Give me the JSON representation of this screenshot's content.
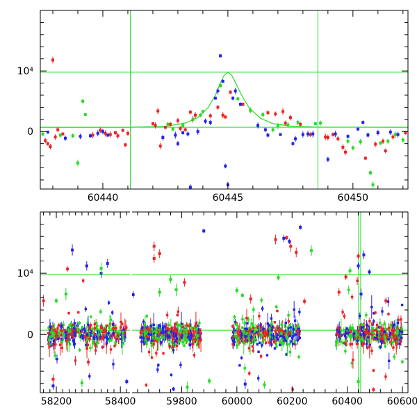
{
  "chart_data": [
    {
      "panel": "top",
      "type": "scatter",
      "title": "",
      "xlabel": "",
      "ylabel": "",
      "xlim": [
        60437.5,
        60452.2
      ],
      "ylim": [
        -9500,
        20000
      ],
      "xticks": [
        60440,
        60445,
        60450
      ],
      "xtick_labels": [
        "60440",
        "60445",
        "60450"
      ],
      "yticks": [
        0,
        10000
      ],
      "ytick_labels": [
        "0",
        "10⁴"
      ],
      "hlines": [
        {
          "y": 700,
          "color": "#22dd22"
        },
        {
          "y": 9800,
          "color": "#22dd22"
        }
      ],
      "vlines": [
        {
          "x": 60441.1,
          "color": "#22dd22"
        },
        {
          "x": 60448.6,
          "color": "#22dd22"
        }
      ],
      "model_curve": {
        "color": "#22dd22",
        "points": [
          [
            60437.5,
            700
          ],
          [
            60441.0,
            710
          ],
          [
            60442.5,
            850
          ],
          [
            60443.3,
            1400
          ],
          [
            60443.8,
            2300
          ],
          [
            60444.2,
            3900
          ],
          [
            60444.5,
            6000
          ],
          [
            60444.7,
            8000
          ],
          [
            60444.85,
            9300
          ],
          [
            60445.0,
            9800
          ],
          [
            60445.15,
            9300
          ],
          [
            60445.3,
            8100
          ],
          [
            60445.55,
            6000
          ],
          [
            60445.85,
            3900
          ],
          [
            60446.3,
            2200
          ],
          [
            60446.8,
            1300
          ],
          [
            60447.5,
            900
          ],
          [
            60448.5,
            740
          ],
          [
            60452.2,
            700
          ]
        ]
      },
      "series": [
        {
          "color": "#ee2222",
          "points": [
            [
              60437.7,
              -1500
            ],
            [
              60437.8,
              -2000
            ],
            [
              60437.9,
              -2500
            ],
            [
              60438.0,
              11800
            ],
            [
              60438.1,
              -900
            ],
            [
              60438.2,
              300
            ],
            [
              60438.4,
              -400
            ],
            [
              60439.6,
              -600
            ],
            [
              60439.9,
              200
            ],
            [
              60440.1,
              -300
            ],
            [
              60440.3,
              -500
            ],
            [
              60440.5,
              -200
            ],
            [
              60440.6,
              -700
            ],
            [
              60440.8,
              200
            ],
            [
              60441.0,
              -300
            ],
            [
              60440.9,
              -2200
            ],
            [
              60442.0,
              1300
            ],
            [
              60442.1,
              1000
            ],
            [
              60442.2,
              3400
            ],
            [
              60442.3,
              -2400
            ],
            [
              60442.5,
              700
            ],
            [
              60442.7,
              1200
            ],
            [
              60443.0,
              1800
            ],
            [
              60443.1,
              500
            ],
            [
              60443.3,
              300
            ],
            [
              60443.5,
              3200
            ],
            [
              60443.6,
              2000
            ],
            [
              60443.7,
              2700
            ],
            [
              60444.3,
              2600
            ],
            [
              60444.6,
              4000
            ],
            [
              60444.8,
              2700
            ],
            [
              60444.9,
              2400
            ],
            [
              60445.1,
              6500
            ],
            [
              60445.6,
              4500
            ],
            [
              60446.6,
              3100
            ],
            [
              60446.9,
              2900
            ],
            [
              60447.2,
              3300
            ],
            [
              60447.3,
              1400
            ],
            [
              60447.5,
              2300
            ],
            [
              60447.9,
              1200
            ],
            [
              60448.3,
              -500
            ],
            [
              60448.9,
              -900
            ],
            [
              60449.0,
              -1000
            ],
            [
              60449.2,
              -500
            ],
            [
              60449.4,
              -1200
            ],
            [
              60449.6,
              -2600
            ],
            [
              60449.7,
              -3400
            ],
            [
              60450.5,
              -4400
            ],
            [
              60450.9,
              -2100
            ],
            [
              60451.0,
              -200
            ],
            [
              60451.2,
              -1600
            ],
            [
              60451.3,
              -3200
            ],
            [
              60451.6,
              -900
            ],
            [
              60452.1,
              -200
            ]
          ]
        },
        {
          "color": "#22dd22",
          "points": [
            [
              60437.6,
              -400
            ],
            [
              60438.3,
              -600
            ],
            [
              60438.8,
              -700
            ],
            [
              60439.0,
              -5200
            ],
            [
              60439.2,
              5000
            ],
            [
              60439.3,
              2800
            ],
            [
              60442.6,
              1200
            ],
            [
              60442.8,
              400
            ],
            [
              60443.2,
              1000
            ],
            [
              60443.6,
              2000
            ],
            [
              60443.9,
              2700
            ],
            [
              60444.0,
              3300
            ],
            [
              60444.7,
              7600
            ],
            [
              60445.4,
              5400
            ],
            [
              60445.9,
              3500
            ],
            [
              60446.4,
              2800
            ],
            [
              60446.8,
              300
            ],
            [
              60447.0,
              900
            ],
            [
              60447.4,
              1100
            ],
            [
              60447.8,
              1500
            ],
            [
              60448.5,
              1300
            ],
            [
              60448.7,
              1400
            ],
            [
              60449.8,
              -1600
            ],
            [
              60450.0,
              -2700
            ],
            [
              60450.3,
              -1700
            ],
            [
              60450.6,
              -500
            ],
            [
              60450.7,
              -6800
            ],
            [
              60450.8,
              -8800
            ],
            [
              60451.1,
              -1900
            ],
            [
              60451.4,
              -1600
            ],
            [
              60451.7,
              -500
            ],
            [
              60452.0,
              -1400
            ]
          ]
        },
        {
          "color": "#2222ee",
          "points": [
            [
              60437.8,
              -100
            ],
            [
              60438.5,
              -1100
            ],
            [
              60439.1,
              -800
            ],
            [
              60439.5,
              -700
            ],
            [
              60439.8,
              -300
            ],
            [
              60440.0,
              0
            ],
            [
              60440.2,
              -600
            ],
            [
              60442.4,
              -1000
            ],
            [
              60442.9,
              -600
            ],
            [
              60443.0,
              -2000
            ],
            [
              60443.2,
              -200
            ],
            [
              60443.4,
              -400
            ],
            [
              60443.5,
              -9200
            ],
            [
              60443.8,
              0
            ],
            [
              60444.1,
              1700
            ],
            [
              60444.3,
              1500
            ],
            [
              60444.5,
              5500
            ],
            [
              60444.6,
              6700
            ],
            [
              60444.7,
              12500
            ],
            [
              60444.8,
              8300
            ],
            [
              60444.9,
              -5700
            ],
            [
              60445.0,
              -8800
            ],
            [
              60445.2,
              5500
            ],
            [
              60445.3,
              6700
            ],
            [
              60445.5,
              4500
            ],
            [
              60446.2,
              1000
            ],
            [
              60446.5,
              300
            ],
            [
              60446.6,
              -600
            ],
            [
              60447.1,
              -500
            ],
            [
              60447.6,
              -2000
            ],
            [
              60447.7,
              -1200
            ],
            [
              60448.0,
              -500
            ],
            [
              60448.2,
              -400
            ],
            [
              60448.4,
              -400
            ],
            [
              60449.0,
              -4600
            ],
            [
              60449.3,
              -400
            ],
            [
              60449.8,
              -800
            ],
            [
              60450.2,
              400
            ],
            [
              60450.4,
              1500
            ],
            [
              60450.6,
              -600
            ],
            [
              60451.0,
              -200
            ],
            [
              60451.5,
              -100
            ],
            [
              60451.8,
              -500
            ]
          ]
        }
      ]
    },
    {
      "panel": "bottom",
      "type": "scatter",
      "title": "",
      "xlabel": "",
      "ylabel": "",
      "xticks": [
        58200,
        58400,
        59800,
        60000,
        60200,
        60400,
        60600
      ],
      "xtick_labels": [
        "58200",
        "58400",
        "59800",
        "60000",
        "60200",
        "60400",
        "60600"
      ],
      "axis_break": {
        "left_segment": [
          58150,
          58430
        ],
        "right_segment": [
          59620,
          60620
        ]
      },
      "ylim": [
        -9500,
        20000
      ],
      "yticks": [
        0,
        10000
      ],
      "ytick_labels": [
        "0",
        "10⁴"
      ],
      "hlines": [
        {
          "y": 700,
          "color": "#22dd22"
        },
        {
          "y": 9800,
          "color": "#22dd22"
        }
      ],
      "vlines": [
        {
          "x": 60441.1,
          "color": "#22dd22"
        },
        {
          "x": 60448.6,
          "color": "#22dd22"
        }
      ],
      "seasons": [
        {
          "x0": 58175,
          "x1": 58420
        },
        {
          "x0": 59650,
          "x1": 59870
        },
        {
          "x0": 59980,
          "x1": 60230
        },
        {
          "x0": 60360,
          "x1": 60600
        }
      ],
      "series_colors": [
        "#ee2222",
        "#22dd22",
        "#2222ee"
      ],
      "outliers": [
        {
          "color": "#2222ee",
          "points": [
            [
              58250,
              13800
            ],
            [
              58295,
              11200
            ],
            [
              58340,
              10000
            ],
            [
              58360,
              11600
            ],
            [
              58440,
              6500
            ],
            [
              59880,
              16900
            ],
            [
              60170,
              15700
            ],
            [
              60190,
              15200
            ],
            [
              60230,
              17500
            ],
            [
              60440,
              11200
            ],
            [
              60460,
              13000
            ],
            [
              60450,
              6600
            ],
            [
              60480,
              10200
            ],
            [
              58190,
              -8400
            ],
            [
              58420,
              -7700
            ],
            [
              59770,
              -8900
            ],
            [
              60030,
              -8100
            ]
          ]
        },
        {
          "color": "#ee2222",
          "points": [
            [
              58235,
              10700
            ],
            [
              58160,
              5500
            ],
            [
              58190,
              -7300
            ],
            [
              59700,
              14400
            ],
            [
              59720,
              13200
            ],
            [
              59700,
              12400
            ],
            [
              59810,
              8500
            ],
            [
              60050,
              5800
            ],
            [
              60140,
              15500
            ],
            [
              60180,
              15800
            ],
            [
              60195,
              14400
            ],
            [
              60215,
              13400
            ],
            [
              60245,
              5400
            ],
            [
              60370,
              6900
            ],
            [
              60395,
              9400
            ],
            [
              60440,
              12800
            ],
            [
              60495,
              -9000
            ],
            [
              60540,
              5500
            ],
            [
              58300,
              -4500
            ]
          ]
        },
        {
          "color": "#22dd22",
          "points": [
            [
              58200,
              5500
            ],
            [
              58230,
              6600
            ],
            [
              58340,
              10800
            ],
            [
              59720,
              6900
            ],
            [
              59760,
              9000
            ],
            [
              59780,
              7300
            ],
            [
              59820,
              -8600
            ],
            [
              60000,
              7200
            ],
            [
              60020,
              6400
            ],
            [
              60150,
              9300
            ],
            [
              60270,
              13700
            ],
            [
              60410,
              10400
            ],
            [
              60440,
              -7700
            ],
            [
              58280,
              -7900
            ],
            [
              59900,
              -7600
            ],
            [
              60100,
              -8200
            ]
          ]
        }
      ]
    }
  ]
}
